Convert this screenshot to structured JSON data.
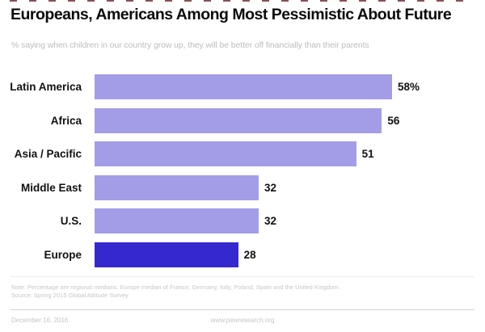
{
  "header": {
    "title": "Europeans, Americans Among Most Pessimistic About Future",
    "subtitle": "% saying when children in our country grow up, they will be better off financially than their parents"
  },
  "chart_data": {
    "type": "bar",
    "orientation": "horizontal",
    "title": "Europeans, Americans Among Most Pessimistic About Future",
    "subtitle": "% saying when children in our country grow up, they will be better off financially than their parents",
    "categories": [
      "Latin America",
      "Africa",
      "Asia / Pacific",
      "Middle East",
      "U.S.",
      "Europe"
    ],
    "values": [
      58,
      56,
      51,
      32,
      32,
      28
    ],
    "value_labels": [
      "58%",
      "56",
      "51",
      "32",
      "32",
      "28"
    ],
    "highlight_category": "Europe",
    "bar_color": "#a29de6",
    "highlight_color": "#3628cf",
    "label_color": "#111111",
    "xlim": [
      0,
      60
    ],
    "grid": false,
    "legend": "none",
    "data_labels": "outside-end"
  },
  "footnote": {
    "note": "Note: Percentage are regional medians. Europe median of France, Germany, Italy, Poland, Spain and the United Kingdom.",
    "source": "Source: Spring 2015 Global Attitude Survey"
  },
  "footer": {
    "date": "December 16, 2016",
    "url": "www.pewresearch.org"
  }
}
